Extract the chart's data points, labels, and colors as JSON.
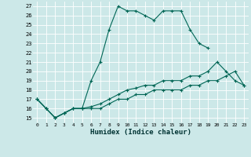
{
  "title": "",
  "xlabel": "Humidex (Indice chaleur)",
  "bg_color": "#cce8e8",
  "line_color": "#006655",
  "xlim": [
    -0.5,
    23.5
  ],
  "ylim": [
    14.5,
    27.5
  ],
  "xticks": [
    0,
    1,
    2,
    3,
    4,
    5,
    6,
    7,
    8,
    9,
    10,
    11,
    12,
    13,
    14,
    15,
    16,
    17,
    18,
    19,
    20,
    21,
    22,
    23
  ],
  "yticks": [
    15,
    16,
    17,
    18,
    19,
    20,
    21,
    22,
    23,
    24,
    25,
    26,
    27
  ],
  "series": [
    [
      17,
      16,
      15,
      15.5,
      16,
      16,
      19,
      21,
      24.5,
      27,
      26.5,
      26.5,
      26,
      25.5,
      26.5,
      26.5,
      26.5,
      24.5,
      23,
      22.5,
      null,
      null,
      null,
      null
    ],
    [
      17,
      16,
      15,
      15.5,
      16,
      16,
      16.2,
      16.5,
      17,
      17.5,
      18,
      18.2,
      18.5,
      18.5,
      19,
      19,
      19,
      19.5,
      19.5,
      20,
      21,
      20,
      19,
      18.5
    ],
    [
      17,
      16,
      15,
      15.5,
      16,
      16,
      16,
      16,
      16.5,
      17,
      17,
      17.5,
      17.5,
      18,
      18,
      18,
      18,
      18.5,
      18.5,
      19,
      19,
      19.5,
      20,
      18.5
    ]
  ]
}
